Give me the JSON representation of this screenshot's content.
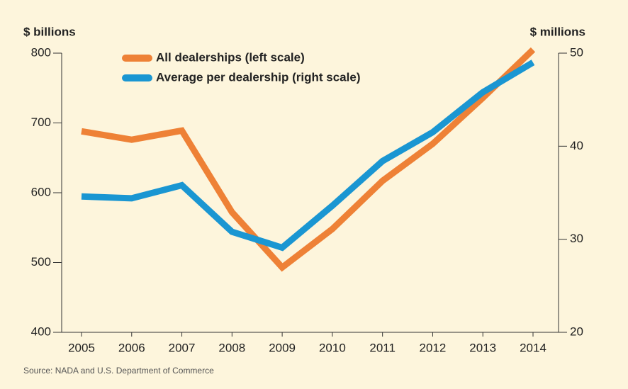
{
  "chart_data": {
    "type": "line",
    "y_label": "$ billions",
    "y2_label": "$ millions",
    "source": "Source: NADA and U.S. Department of Commerce",
    "categories": [
      "2005",
      "2006",
      "2007",
      "2008",
      "2009",
      "2010",
      "2011",
      "2012",
      "2013",
      "2014"
    ],
    "series": [
      {
        "name": "All dealerships (left scale)",
        "color": "#ee8136",
        "axis": "y",
        "values": [
          688,
          676,
          689,
          572,
          493,
          548,
          617,
          670,
          736,
          805
        ]
      },
      {
        "name": "Average per dealership (right scale)",
        "color": "#1a96d2",
        "axis": "y2",
        "values": [
          34.6,
          34.4,
          35.8,
          30.8,
          29.1,
          33.6,
          38.4,
          41.5,
          45.8,
          49.0
        ]
      }
    ],
    "ylim": [
      400,
      800
    ],
    "yticks": [
      400,
      500,
      600,
      700,
      800
    ],
    "y2lim": [
      20,
      50
    ],
    "y2ticks": [
      20,
      30,
      40,
      50
    ],
    "legend": "upper left"
  }
}
